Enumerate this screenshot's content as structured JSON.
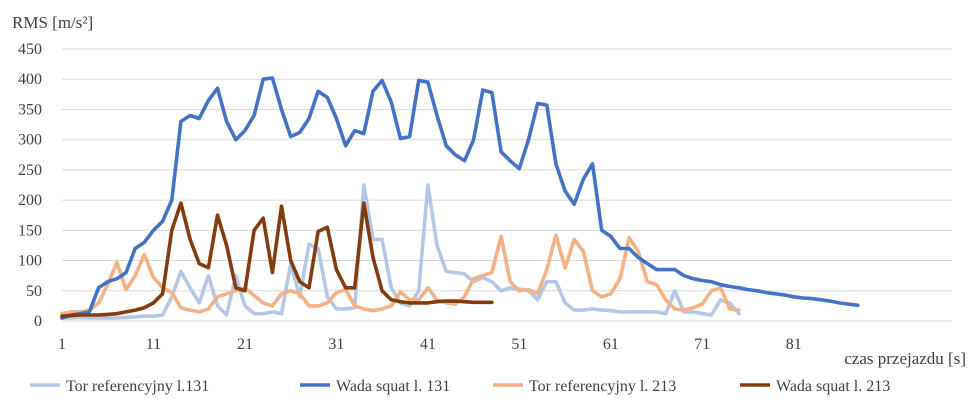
{
  "chart_data": {
    "type": "line",
    "title": "",
    "ylabel": "RMS [m/s²]",
    "xlabel": "czas przejazdu [s]",
    "ylim": [
      0,
      450
    ],
    "xlim": [
      1,
      91
    ],
    "yticks": [
      0,
      50,
      100,
      150,
      200,
      250,
      300,
      350,
      400,
      450
    ],
    "xticks": [
      1,
      11,
      21,
      31,
      41,
      51,
      61,
      71,
      81
    ],
    "grid": "horizontal",
    "legend_position": "bottom",
    "series": [
      {
        "name": "Tor referencyjny l.131",
        "color": "#b4c7e7",
        "x": [
          1,
          2,
          3,
          4,
          5,
          6,
          7,
          8,
          9,
          10,
          11,
          12,
          13,
          14,
          15,
          16,
          17,
          18,
          19,
          20,
          21,
          22,
          23,
          24,
          25,
          26,
          27,
          28,
          29,
          30,
          31,
          32,
          33,
          34,
          35,
          36,
          37,
          38,
          39,
          40,
          41,
          42,
          43,
          44,
          45,
          46,
          47,
          48,
          49,
          50,
          51,
          52,
          53,
          54,
          55,
          56,
          57,
          58,
          59,
          60,
          61,
          62,
          63,
          64,
          65,
          66,
          67,
          68,
          69,
          70,
          71,
          72,
          73,
          74,
          75
        ],
        "values": [
          5,
          5,
          6,
          5,
          5,
          5,
          5,
          6,
          7,
          8,
          8,
          10,
          40,
          82,
          55,
          30,
          75,
          25,
          10,
          75,
          25,
          12,
          12,
          15,
          12,
          95,
          40,
          127,
          120,
          40,
          20,
          20,
          22,
          225,
          135,
          135,
          55,
          30,
          25,
          50,
          225,
          125,
          82,
          80,
          78,
          65,
          72,
          65,
          50,
          55,
          53,
          50,
          35,
          65,
          65,
          30,
          18,
          18,
          20,
          18,
          17,
          15,
          15,
          15,
          15,
          15,
          12,
          50,
          15,
          15,
          12,
          10,
          35,
          30,
          12
        ]
      },
      {
        "name": "Wada squat l. 131",
        "color": "#4472c4",
        "x": [
          1,
          2,
          3,
          4,
          5,
          6,
          7,
          8,
          9,
          10,
          11,
          12,
          13,
          14,
          15,
          16,
          17,
          18,
          19,
          20,
          21,
          22,
          23,
          24,
          25,
          26,
          27,
          28,
          29,
          30,
          31,
          32,
          33,
          34,
          35,
          36,
          37,
          38,
          39,
          40,
          41,
          42,
          43,
          44,
          45,
          46,
          47,
          48,
          49,
          50,
          51,
          52,
          53,
          54,
          55,
          56,
          57,
          58,
          59,
          60,
          61,
          62,
          63,
          64,
          65,
          66,
          67,
          68,
          69,
          70,
          71,
          72,
          73,
          74,
          75,
          76,
          77,
          78,
          79,
          80,
          81,
          82,
          83,
          84,
          85,
          86,
          87,
          88
        ],
        "values": [
          5,
          10,
          12,
          15,
          55,
          65,
          70,
          80,
          120,
          130,
          150,
          165,
          200,
          330,
          340,
          335,
          365,
          385,
          330,
          300,
          315,
          340,
          400,
          402,
          350,
          305,
          312,
          335,
          380,
          370,
          335,
          290,
          315,
          310,
          380,
          398,
          362,
          302,
          305,
          398,
          395,
          340,
          290,
          275,
          265,
          300,
          382,
          378,
          280,
          265,
          252,
          300,
          360,
          357,
          260,
          215,
          193,
          235,
          260,
          150,
          140,
          120,
          120,
          105,
          95,
          85,
          85,
          85,
          75,
          70,
          67,
          65,
          60,
          57,
          55,
          52,
          50,
          47,
          45,
          43,
          40,
          38,
          37,
          35,
          33,
          30,
          28,
          26
        ]
      },
      {
        "name": "Tor referencyjny l. 213",
        "color": "#f4b183",
        "x": [
          1,
          2,
          3,
          4,
          5,
          6,
          7,
          8,
          9,
          10,
          11,
          12,
          13,
          14,
          15,
          16,
          17,
          18,
          19,
          20,
          21,
          22,
          23,
          24,
          25,
          26,
          27,
          28,
          29,
          30,
          31,
          32,
          33,
          34,
          35,
          36,
          37,
          38,
          39,
          40,
          41,
          42,
          43,
          44,
          45,
          46,
          47,
          48,
          49,
          50,
          51,
          52,
          53,
          54,
          55,
          56,
          57,
          58,
          59,
          60,
          61,
          62,
          63,
          64,
          65,
          66,
          67,
          68,
          69,
          70,
          71,
          72,
          73,
          74,
          75
        ],
        "values": [
          12,
          15,
          15,
          18,
          30,
          60,
          97,
          52,
          75,
          110,
          72,
          55,
          47,
          22,
          18,
          15,
          20,
          40,
          45,
          50,
          55,
          42,
          30,
          25,
          45,
          50,
          45,
          25,
          25,
          30,
          47,
          52,
          25,
          20,
          17,
          20,
          25,
          48,
          35,
          35,
          55,
          35,
          30,
          28,
          40,
          70,
          75,
          80,
          140,
          65,
          50,
          52,
          45,
          85,
          142,
          88,
          135,
          115,
          50,
          40,
          45,
          70,
          138,
          115,
          65,
          60,
          35,
          20,
          18,
          22,
          28,
          50,
          55,
          20,
          18
        ]
      },
      {
        "name": "Wada squat l. 213",
        "color": "#843c0c",
        "x": [
          1,
          2,
          3,
          4,
          5,
          6,
          7,
          8,
          9,
          10,
          11,
          12,
          13,
          14,
          15,
          16,
          17,
          18,
          19,
          20,
          21,
          22,
          23,
          24,
          25,
          26,
          27,
          28,
          29,
          30,
          31,
          32,
          33,
          34,
          35,
          36,
          37,
          38,
          39,
          40,
          41,
          42,
          43,
          44,
          45,
          46,
          47,
          48
        ],
        "values": [
          8,
          9,
          10,
          10,
          10,
          11,
          12,
          15,
          18,
          22,
          30,
          45,
          150,
          195,
          135,
          95,
          88,
          175,
          125,
          55,
          50,
          150,
          170,
          80,
          190,
          100,
          65,
          55,
          148,
          155,
          85,
          55,
          55,
          195,
          105,
          50,
          35,
          32,
          30,
          30,
          30,
          32,
          33,
          33,
          32,
          31,
          31,
          31
        ]
      }
    ]
  }
}
